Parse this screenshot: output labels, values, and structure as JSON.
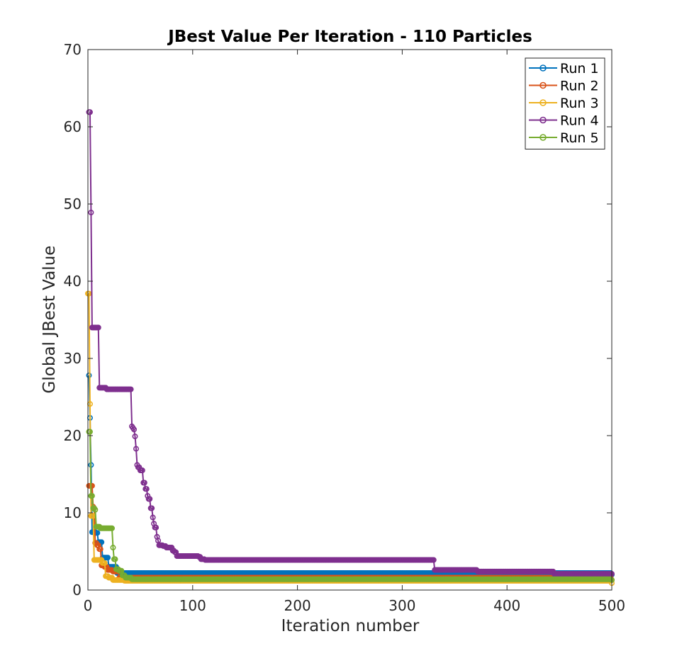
{
  "chart_data": {
    "type": "line",
    "title": "JBest Value Per Iteration - 110 Particles",
    "xlabel": "Iteration number",
    "ylabel": "Global JBest Value",
    "xlim": [
      0,
      500
    ],
    "ylim": [
      0,
      70
    ],
    "xticks": [
      0,
      100,
      200,
      300,
      400,
      500
    ],
    "yticks": [
      0,
      10,
      20,
      30,
      40,
      50,
      60,
      70
    ],
    "xtick_labels": [
      "0",
      "100",
      "200",
      "300",
      "400",
      "500"
    ],
    "ytick_labels": [
      "0",
      "10",
      "20",
      "30",
      "40",
      "50",
      "60",
      "70"
    ],
    "grid": false,
    "legend_position": "top-right",
    "marker": "open-circle",
    "series": [
      {
        "name": "Run 1",
        "color": "#0072BD",
        "steps": [
          [
            1,
            27.8
          ],
          [
            2,
            22.3
          ],
          [
            3,
            16.2
          ],
          [
            4,
            7.5
          ],
          [
            8,
            7.4
          ],
          [
            10,
            6.2
          ],
          [
            12,
            6.2
          ],
          [
            14,
            4.2
          ],
          [
            18,
            4.2
          ],
          [
            20,
            3.0
          ],
          [
            25,
            3.0
          ],
          [
            28,
            2.2
          ],
          [
            500,
            2.0
          ]
        ]
      },
      {
        "name": "Run 2",
        "color": "#D95319",
        "steps": [
          [
            1,
            13.5
          ],
          [
            4,
            13.5
          ],
          [
            5,
            10.8
          ],
          [
            6,
            10.6
          ],
          [
            7,
            6.1
          ],
          [
            9,
            5.8
          ],
          [
            11,
            5.3
          ],
          [
            13,
            3.2
          ],
          [
            16,
            3.0
          ],
          [
            19,
            2.6
          ],
          [
            24,
            2.4
          ],
          [
            30,
            1.6
          ],
          [
            500,
            1.3
          ]
        ]
      },
      {
        "name": "Run 3",
        "color": "#EDB120",
        "steps": [
          [
            0,
            38.4
          ],
          [
            2,
            24.1
          ],
          [
            3,
            9.6
          ],
          [
            5,
            9.6
          ],
          [
            6,
            3.9
          ],
          [
            12,
            3.9
          ],
          [
            14,
            3.5
          ],
          [
            17,
            1.8
          ],
          [
            20,
            1.6
          ],
          [
            24,
            1.3
          ],
          [
            35,
            1.2
          ],
          [
            500,
            0.9
          ]
        ]
      },
      {
        "name": "Run 4",
        "color": "#7E2F8E",
        "steps": [
          [
            1,
            61.9
          ],
          [
            3,
            48.9
          ],
          [
            4,
            34.0
          ],
          [
            10,
            34.0
          ],
          [
            11,
            26.2
          ],
          [
            17,
            26.2
          ],
          [
            18,
            26.0
          ],
          [
            41,
            26.0
          ],
          [
            42,
            21.2
          ],
          [
            43,
            21.0
          ],
          [
            44,
            20.8
          ],
          [
            45,
            19.9
          ],
          [
            46,
            18.3
          ],
          [
            47,
            16.2
          ],
          [
            48,
            15.9
          ],
          [
            50,
            15.5
          ],
          [
            52,
            15.5
          ],
          [
            53,
            13.9
          ],
          [
            55,
            13.1
          ],
          [
            57,
            12.2
          ],
          [
            58,
            11.8
          ],
          [
            60,
            10.6
          ],
          [
            62,
            9.4
          ],
          [
            63,
            8.6
          ],
          [
            64,
            8.1
          ],
          [
            66,
            6.9
          ],
          [
            67,
            6.4
          ],
          [
            68,
            5.8
          ],
          [
            72,
            5.7
          ],
          [
            75,
            5.5
          ],
          [
            80,
            5.5
          ],
          [
            81,
            5.1
          ],
          [
            83,
            4.9
          ],
          [
            85,
            4.4
          ],
          [
            105,
            4.4
          ],
          [
            106,
            4.3
          ],
          [
            108,
            4.0
          ],
          [
            112,
            3.9
          ],
          [
            330,
            3.9
          ],
          [
            331,
            2.6
          ],
          [
            370,
            2.6
          ],
          [
            372,
            2.4
          ],
          [
            440,
            2.4
          ],
          [
            445,
            2.1
          ],
          [
            500,
            2.1
          ]
        ]
      },
      {
        "name": "Run 5",
        "color": "#77AC30",
        "steps": [
          [
            1,
            20.5
          ],
          [
            2,
            20.5
          ],
          [
            3,
            12.2
          ],
          [
            5,
            10.6
          ],
          [
            6,
            10.6
          ],
          [
            7,
            10.4
          ],
          [
            8,
            8.2
          ],
          [
            12,
            8.0
          ],
          [
            23,
            8.0
          ],
          [
            24,
            5.5
          ],
          [
            25,
            4.0
          ],
          [
            26,
            4.0
          ],
          [
            27,
            2.7
          ],
          [
            30,
            2.5
          ],
          [
            33,
            1.9
          ],
          [
            36,
            1.6
          ],
          [
            42,
            1.4
          ],
          [
            500,
            1.3
          ]
        ]
      }
    ]
  }
}
